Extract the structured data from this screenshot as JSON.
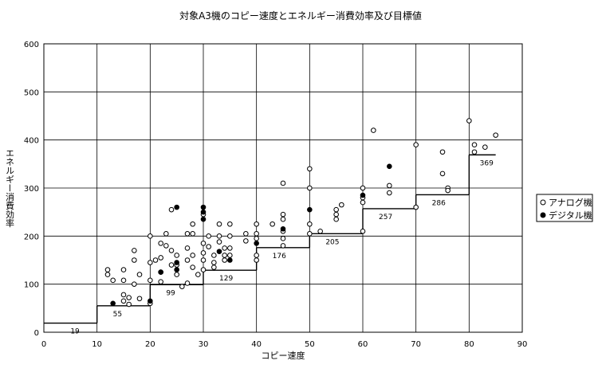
{
  "chart_data": {
    "type": "scatter",
    "title": "対象A3機のコピー速度とエネルギー消費効率及び目標値",
    "xlabel": "コピー速度",
    "ylabel": "エネルギー消費効率",
    "xlim": [
      0,
      90
    ],
    "ylim": [
      0,
      600
    ],
    "x_ticks": [
      "0",
      "10",
      "20",
      "30",
      "40",
      "50",
      "60",
      "70",
      "80",
      "90"
    ],
    "y_ticks": [
      "0",
      "100",
      "200",
      "300",
      "400",
      "500",
      "600"
    ],
    "grid": true,
    "legend_position": "right",
    "legend": [
      "アナログ機",
      "デジタル機"
    ],
    "series": [
      {
        "name": "アナログ機",
        "marker": "open-circle",
        "points": [
          [
            12,
            130
          ],
          [
            12,
            120
          ],
          [
            13,
            108
          ],
          [
            15,
            130
          ],
          [
            15,
            108
          ],
          [
            15,
            78
          ],
          [
            15,
            65
          ],
          [
            16,
            72
          ],
          [
            16,
            58
          ],
          [
            17,
            150
          ],
          [
            17,
            100
          ],
          [
            17,
            170
          ],
          [
            18,
            120
          ],
          [
            18,
            70
          ],
          [
            20,
            200
          ],
          [
            20,
            145
          ],
          [
            20,
            108
          ],
          [
            20,
            60
          ],
          [
            21,
            150
          ],
          [
            22,
            185
          ],
          [
            22,
            155
          ],
          [
            22,
            125
          ],
          [
            22,
            105
          ],
          [
            23,
            205
          ],
          [
            23,
            180
          ],
          [
            24,
            255
          ],
          [
            24,
            170
          ],
          [
            24,
            140
          ],
          [
            25,
            160
          ],
          [
            25,
            140
          ],
          [
            25,
            120
          ],
          [
            26,
            95
          ],
          [
            27,
            175
          ],
          [
            27,
            150
          ],
          [
            27,
            205
          ],
          [
            27,
            102
          ],
          [
            28,
            225
          ],
          [
            28,
            205
          ],
          [
            28,
            160
          ],
          [
            28,
            135
          ],
          [
            29,
            120
          ],
          [
            30,
            185
          ],
          [
            30,
            245
          ],
          [
            30,
            165
          ],
          [
            30,
            150
          ],
          [
            30,
            130
          ],
          [
            31,
            200
          ],
          [
            31,
            178
          ],
          [
            32,
            160
          ],
          [
            32,
            145
          ],
          [
            32,
            135
          ],
          [
            33,
            225
          ],
          [
            33,
            200
          ],
          [
            33,
            188
          ],
          [
            34,
            175
          ],
          [
            34,
            160
          ],
          [
            34,
            150
          ],
          [
            35,
            225
          ],
          [
            35,
            200
          ],
          [
            35,
            175
          ],
          [
            35,
            160
          ],
          [
            38,
            205
          ],
          [
            38,
            190
          ],
          [
            40,
            225
          ],
          [
            40,
            205
          ],
          [
            40,
            195
          ],
          [
            40,
            160
          ],
          [
            40,
            150
          ],
          [
            43,
            225
          ],
          [
            45,
            310
          ],
          [
            45,
            245
          ],
          [
            45,
            235
          ],
          [
            45,
            210
          ],
          [
            45,
            195
          ],
          [
            45,
            180
          ],
          [
            50,
            340
          ],
          [
            50,
            300
          ],
          [
            50,
            225
          ],
          [
            50,
            205
          ],
          [
            52,
            210
          ],
          [
            55,
            255
          ],
          [
            55,
            245
          ],
          [
            55,
            235
          ],
          [
            56,
            265
          ],
          [
            60,
            300
          ],
          [
            60,
            280
          ],
          [
            60,
            270
          ],
          [
            60,
            210
          ],
          [
            62,
            420
          ],
          [
            65,
            305
          ],
          [
            65,
            290
          ],
          [
            70,
            390
          ],
          [
            70,
            260
          ],
          [
            75,
            375
          ],
          [
            75,
            330
          ],
          [
            76,
            300
          ],
          [
            76,
            295
          ],
          [
            80,
            440
          ],
          [
            81,
            390
          ],
          [
            81,
            375
          ],
          [
            83,
            385
          ],
          [
            85,
            410
          ]
        ]
      },
      {
        "name": "デジタル機",
        "marker": "filled-circle",
        "points": [
          [
            13,
            60
          ],
          [
            20,
            65
          ],
          [
            22,
            125
          ],
          [
            25,
            260
          ],
          [
            25,
            145
          ],
          [
            25,
            130
          ],
          [
            30,
            260
          ],
          [
            30,
            235
          ],
          [
            30,
            250
          ],
          [
            33,
            168
          ],
          [
            35,
            150
          ],
          [
            40,
            185
          ],
          [
            45,
            215
          ],
          [
            50,
            255
          ],
          [
            60,
            285
          ],
          [
            65,
            345
          ]
        ]
      }
    ],
    "target_line": {
      "segments": [
        {
          "x_start": 0,
          "x_end": 10,
          "value": 19
        },
        {
          "x_start": 10,
          "x_end": 20,
          "value": 55
        },
        {
          "x_start": 20,
          "x_end": 30,
          "value": 99
        },
        {
          "x_start": 30,
          "x_end": 40,
          "value": 129
        },
        {
          "x_start": 40,
          "x_end": 50,
          "value": 176
        },
        {
          "x_start": 50,
          "x_end": 60,
          "value": 205
        },
        {
          "x_start": 60,
          "x_end": 70,
          "value": 257
        },
        {
          "x_start": 70,
          "x_end": 80,
          "value": 286
        },
        {
          "x_start": 80,
          "x_end": 85,
          "value": 369
        }
      ],
      "labels": [
        "19",
        "55",
        "99",
        "129",
        "176",
        "205",
        "257",
        "286",
        "369"
      ]
    }
  }
}
